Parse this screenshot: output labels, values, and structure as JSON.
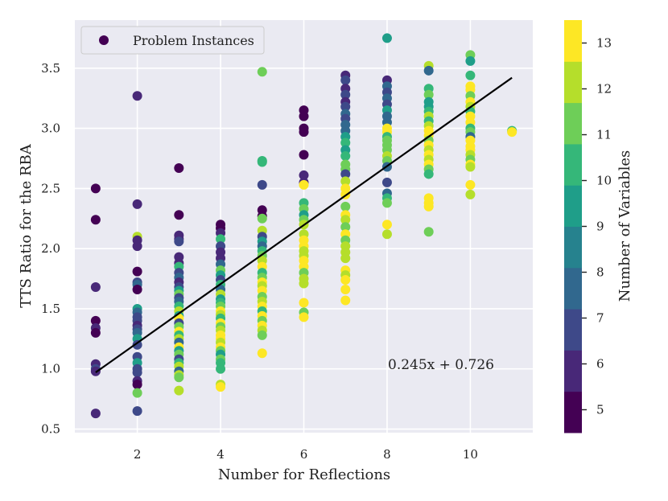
{
  "chart_data": {
    "type": "scatter",
    "title": "",
    "xlabel": "Number for Reflections",
    "ylabel": "TTS Ratio for the RBA",
    "xlim": [
      0.5,
      11.5
    ],
    "ylim": [
      0.47,
      3.9
    ],
    "xticks": [
      2,
      4,
      6,
      8,
      10
    ],
    "yticks": [
      0.5,
      1.0,
      1.5,
      2.0,
      2.5,
      3.0,
      3.5
    ],
    "xtick_labels": [
      "2",
      "4",
      "6",
      "8",
      "10"
    ],
    "ytick_labels": [
      "0.5",
      "1.0",
      "1.5",
      "2.0",
      "2.5",
      "3.0",
      "3.5"
    ],
    "grid": true,
    "legend": {
      "label": "Problem Instances",
      "position": "top-left"
    },
    "colorbar": {
      "label": "Number of Variables",
      "ticks": [
        5,
        6,
        7,
        8,
        9,
        10,
        11,
        12,
        13
      ],
      "tick_labels": [
        "5",
        "6",
        "7",
        "8",
        "9",
        "10",
        "11",
        "12",
        "13"
      ],
      "colors": [
        "#440154",
        "#482878",
        "#3e4989",
        "#31688e",
        "#26828e",
        "#1f9e89",
        "#35b779",
        "#6ece58",
        "#b5de2b",
        "#fde725"
      ]
    },
    "fit_line": {
      "slope": 0.245,
      "intercept": 0.726,
      "x_range": [
        1,
        11
      ]
    },
    "annotation": "0.245x + 0.726",
    "point_columns": [
      {
        "x": 1,
        "points": [
          [
            2.5,
            5
          ],
          [
            2.24,
            5
          ],
          [
            1.68,
            6
          ],
          [
            1.4,
            5
          ],
          [
            1.34,
            6
          ],
          [
            1.3,
            5
          ],
          [
            1.04,
            6
          ],
          [
            1.0,
            7
          ],
          [
            0.98,
            6
          ],
          [
            0.63,
            6
          ]
        ]
      },
      {
        "x": 2,
        "points": [
          [
            3.27,
            6
          ],
          [
            2.37,
            6
          ],
          [
            2.1,
            12
          ],
          [
            2.07,
            6
          ],
          [
            2.02,
            6
          ],
          [
            1.81,
            5
          ],
          [
            1.72,
            7
          ],
          [
            1.7,
            8
          ],
          [
            1.66,
            5
          ],
          [
            1.5,
            9
          ],
          [
            1.47,
            8
          ],
          [
            1.43,
            7
          ],
          [
            1.4,
            7
          ],
          [
            1.36,
            6
          ],
          [
            1.33,
            7
          ],
          [
            1.3,
            8
          ],
          [
            1.25,
            9
          ],
          [
            1.2,
            7
          ],
          [
            1.1,
            7
          ],
          [
            1.05,
            9
          ],
          [
            1.0,
            7
          ],
          [
            0.97,
            7
          ],
          [
            0.9,
            6
          ],
          [
            0.87,
            5
          ],
          [
            0.8,
            11
          ],
          [
            0.65,
            7
          ]
        ]
      },
      {
        "x": 3,
        "points": [
          [
            2.67,
            5
          ],
          [
            2.28,
            5
          ],
          [
            2.11,
            6
          ],
          [
            2.08,
            6
          ],
          [
            2.06,
            7
          ],
          [
            1.93,
            6
          ],
          [
            1.88,
            6
          ],
          [
            1.85,
            10
          ],
          [
            1.8,
            7
          ],
          [
            1.76,
            8
          ],
          [
            1.72,
            6
          ],
          [
            1.68,
            7
          ],
          [
            1.65,
            9
          ],
          [
            1.62,
            11
          ],
          [
            1.59,
            7
          ],
          [
            1.56,
            8
          ],
          [
            1.52,
            10
          ],
          [
            1.48,
            12
          ],
          [
            1.44,
            9
          ],
          [
            1.42,
            13
          ],
          [
            1.38,
            7
          ],
          [
            1.35,
            11
          ],
          [
            1.31,
            13
          ],
          [
            1.28,
            10
          ],
          [
            1.25,
            12
          ],
          [
            1.22,
            8
          ],
          [
            1.18,
            13
          ],
          [
            1.15,
            9
          ],
          [
            1.12,
            11
          ],
          [
            1.08,
            7
          ],
          [
            1.05,
            10
          ],
          [
            1.02,
            12
          ],
          [
            0.98,
            8
          ],
          [
            0.95,
            12
          ],
          [
            0.93,
            11
          ],
          [
            0.82,
            12
          ]
        ]
      },
      {
        "x": 4,
        "points": [
          [
            2.2,
            5
          ],
          [
            2.17,
            5
          ],
          [
            2.13,
            6
          ],
          [
            2.08,
            10
          ],
          [
            2.02,
            7
          ],
          [
            1.97,
            6
          ],
          [
            1.92,
            6
          ],
          [
            1.87,
            8
          ],
          [
            1.82,
            11
          ],
          [
            1.78,
            9
          ],
          [
            1.74,
            7
          ],
          [
            1.7,
            10
          ],
          [
            1.66,
            8
          ],
          [
            1.62,
            12
          ],
          [
            1.58,
            9
          ],
          [
            1.55,
            10
          ],
          [
            1.52,
            11
          ],
          [
            1.48,
            13
          ],
          [
            1.45,
            12
          ],
          [
            1.42,
            10
          ],
          [
            1.38,
            13
          ],
          [
            1.35,
            11
          ],
          [
            1.32,
            12
          ],
          [
            1.28,
            13
          ],
          [
            1.25,
            13
          ],
          [
            1.22,
            12
          ],
          [
            1.18,
            13
          ],
          [
            1.15,
            11
          ],
          [
            1.12,
            9
          ],
          [
            1.08,
            11
          ],
          [
            1.05,
            10
          ],
          [
            1.0,
            10
          ],
          [
            0.87,
            12
          ],
          [
            0.85,
            13
          ]
        ]
      },
      {
        "x": 5,
        "points": [
          [
            3.47,
            11
          ],
          [
            2.73,
            10
          ],
          [
            2.72,
            10
          ],
          [
            2.53,
            7
          ],
          [
            2.32,
            5
          ],
          [
            2.27,
            5
          ],
          [
            2.25,
            11
          ],
          [
            2.15,
            12
          ],
          [
            2.1,
            7
          ],
          [
            2.06,
            9
          ],
          [
            2.02,
            8
          ],
          [
            1.98,
            10
          ],
          [
            1.94,
            11
          ],
          [
            1.9,
            12
          ],
          [
            1.85,
            13
          ],
          [
            1.8,
            10
          ],
          [
            1.76,
            11
          ],
          [
            1.72,
            13
          ],
          [
            1.69,
            12
          ],
          [
            1.65,
            13
          ],
          [
            1.6,
            11
          ],
          [
            1.56,
            12
          ],
          [
            1.52,
            13
          ],
          [
            1.48,
            10
          ],
          [
            1.44,
            13
          ],
          [
            1.4,
            11
          ],
          [
            1.36,
            13
          ],
          [
            1.32,
            12
          ],
          [
            1.28,
            11
          ],
          [
            1.13,
            13
          ]
        ]
      },
      {
        "x": 6,
        "points": [
          [
            3.15,
            5
          ],
          [
            3.1,
            5
          ],
          [
            3.0,
            5
          ],
          [
            2.97,
            5
          ],
          [
            2.78,
            5
          ],
          [
            2.61,
            6
          ],
          [
            2.55,
            6
          ],
          [
            2.53,
            13
          ],
          [
            2.38,
            10
          ],
          [
            2.33,
            11
          ],
          [
            2.28,
            9
          ],
          [
            2.24,
            11
          ],
          [
            2.2,
            12
          ],
          [
            2.12,
            12
          ],
          [
            2.07,
            13
          ],
          [
            2.02,
            13
          ],
          [
            1.98,
            12
          ],
          [
            1.94,
            12
          ],
          [
            1.9,
            13
          ],
          [
            1.85,
            13
          ],
          [
            1.8,
            11
          ],
          [
            1.75,
            12
          ],
          [
            1.71,
            12
          ],
          [
            1.55,
            13
          ],
          [
            1.47,
            11
          ],
          [
            1.43,
            13
          ]
        ]
      },
      {
        "x": 7,
        "points": [
          [
            3.44,
            6
          ],
          [
            3.4,
            7
          ],
          [
            3.33,
            6
          ],
          [
            3.28,
            7
          ],
          [
            3.22,
            6
          ],
          [
            3.18,
            7
          ],
          [
            3.12,
            8
          ],
          [
            3.08,
            7
          ],
          [
            3.03,
            8
          ],
          [
            2.98,
            8
          ],
          [
            2.93,
            9
          ],
          [
            2.88,
            10
          ],
          [
            2.82,
            9
          ],
          [
            2.77,
            10
          ],
          [
            2.7,
            11
          ],
          [
            2.66,
            11
          ],
          [
            2.62,
            7
          ],
          [
            2.56,
            12
          ],
          [
            2.5,
            13
          ],
          [
            2.45,
            13
          ],
          [
            2.35,
            11
          ],
          [
            2.28,
            13
          ],
          [
            2.24,
            12
          ],
          [
            2.18,
            11
          ],
          [
            2.12,
            13
          ],
          [
            2.07,
            11
          ],
          [
            2.02,
            12
          ],
          [
            1.97,
            12
          ],
          [
            1.92,
            12
          ],
          [
            1.82,
            13
          ],
          [
            1.78,
            12
          ],
          [
            1.74,
            13
          ],
          [
            1.66,
            13
          ],
          [
            1.57,
            13
          ]
        ]
      },
      {
        "x": 8,
        "points": [
          [
            3.75,
            9
          ],
          [
            3.4,
            6
          ],
          [
            3.35,
            8
          ],
          [
            3.3,
            7
          ],
          [
            3.25,
            8
          ],
          [
            3.2,
            7
          ],
          [
            3.15,
            9
          ],
          [
            3.1,
            8
          ],
          [
            3.05,
            8
          ],
          [
            3.0,
            13
          ],
          [
            2.97,
            13
          ],
          [
            2.93,
            10
          ],
          [
            2.9,
            11
          ],
          [
            2.86,
            11
          ],
          [
            2.82,
            11
          ],
          [
            2.77,
            12
          ],
          [
            2.73,
            11
          ],
          [
            2.68,
            8
          ],
          [
            2.55,
            7
          ],
          [
            2.46,
            8
          ],
          [
            2.42,
            10
          ],
          [
            2.38,
            11
          ],
          [
            2.2,
            13
          ],
          [
            2.12,
            12
          ]
        ]
      },
      {
        "x": 9,
        "points": [
          [
            3.52,
            12
          ],
          [
            3.48,
            8
          ],
          [
            3.33,
            10
          ],
          [
            3.28,
            11
          ],
          [
            3.22,
            9
          ],
          [
            3.18,
            9
          ],
          [
            3.14,
            10
          ],
          [
            3.1,
            12
          ],
          [
            3.06,
            10
          ],
          [
            3.02,
            12
          ],
          [
            2.98,
            13
          ],
          [
            2.94,
            13
          ],
          [
            2.9,
            11
          ],
          [
            2.86,
            13
          ],
          [
            2.82,
            12
          ],
          [
            2.78,
            13
          ],
          [
            2.74,
            12
          ],
          [
            2.7,
            13
          ],
          [
            2.66,
            11
          ],
          [
            2.62,
            10
          ],
          [
            2.42,
            13
          ],
          [
            2.38,
            13
          ],
          [
            2.35,
            13
          ],
          [
            2.14,
            11
          ]
        ]
      },
      {
        "x": 10,
        "points": [
          [
            3.61,
            11
          ],
          [
            3.56,
            9
          ],
          [
            3.44,
            10
          ],
          [
            3.35,
            13
          ],
          [
            3.32,
            13
          ],
          [
            3.27,
            11
          ],
          [
            3.22,
            13
          ],
          [
            3.18,
            12
          ],
          [
            3.14,
            10
          ],
          [
            3.1,
            13
          ],
          [
            3.05,
            13
          ],
          [
            3.0,
            10
          ],
          [
            2.97,
            11
          ],
          [
            2.93,
            8
          ],
          [
            2.9,
            13
          ],
          [
            2.85,
            13
          ],
          [
            2.82,
            13
          ],
          [
            2.78,
            12
          ],
          [
            2.74,
            11
          ],
          [
            2.7,
            13
          ],
          [
            2.68,
            12
          ],
          [
            2.53,
            13
          ],
          [
            2.45,
            12
          ]
        ]
      },
      {
        "x": 11,
        "points": [
          [
            2.98,
            10
          ],
          [
            2.97,
            13
          ]
        ]
      }
    ]
  }
}
